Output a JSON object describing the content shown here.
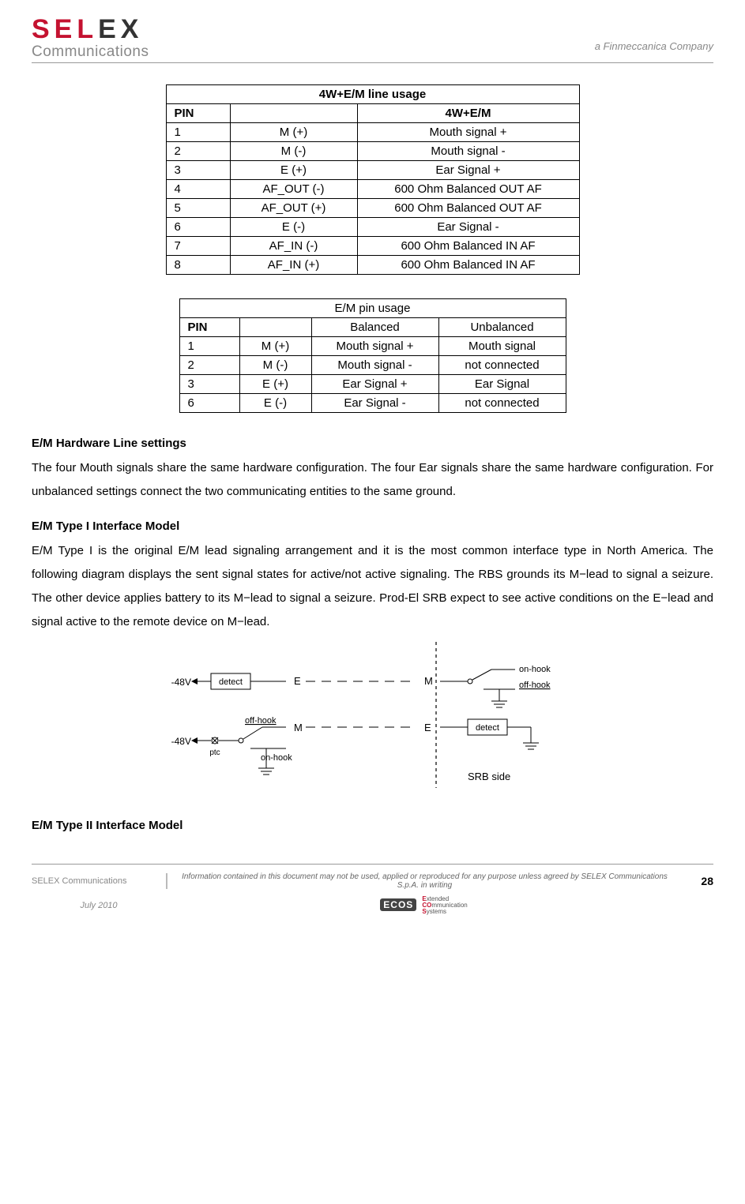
{
  "header": {
    "logo_main_prefix": "SEL",
    "logo_main_suffix": "EX",
    "logo_sub": "Communications",
    "tagline": "a Finmeccanica Company"
  },
  "table1": {
    "title": "4W+E/M line usage",
    "col_pin": "PIN",
    "col_desc": "4W+E/M",
    "rows": [
      {
        "pin": "1",
        "sig": "M (+)",
        "desc": "Mouth signal +"
      },
      {
        "pin": "2",
        "sig": "M (-)",
        "desc": "Mouth signal -"
      },
      {
        "pin": "3",
        "sig": "E (+)",
        "desc": "Ear Signal +"
      },
      {
        "pin": "4",
        "sig": "AF_OUT (-)",
        "desc": "600 Ohm Balanced OUT AF"
      },
      {
        "pin": "5",
        "sig": "AF_OUT (+)",
        "desc": "600 Ohm Balanced OUT AF"
      },
      {
        "pin": "6",
        "sig": "E (-)",
        "desc": "Ear Signal -"
      },
      {
        "pin": "7",
        "sig": "AF_IN (-)",
        "desc": "600 Ohm Balanced IN AF"
      },
      {
        "pin": "8",
        "sig": "AF_IN (+)",
        "desc": "600 Ohm Balanced IN AF"
      }
    ]
  },
  "table2": {
    "title": "E/M pin usage",
    "col_pin": "PIN",
    "col_bal": "Balanced",
    "col_unbal": "Unbalanced",
    "rows": [
      {
        "pin": "1",
        "sig": "M (+)",
        "bal": "Mouth signal +",
        "unbal": "Mouth signal"
      },
      {
        "pin": "2",
        "sig": "M (-)",
        "bal": "Mouth signal -",
        "unbal": "not connected"
      },
      {
        "pin": "3",
        "sig": "E (+)",
        "bal": "Ear Signal +",
        "unbal": "Ear Signal"
      },
      {
        "pin": "6",
        "sig": "E (-)",
        "bal": "Ear Signal -",
        "unbal": "not connected"
      }
    ]
  },
  "sect1_title": "E/M Hardware Line settings",
  "sect1_body": "The four Mouth signals share the same hardware configuration. The four Ear signals share the same hardware configuration. For unbalanced settings connect the two communicating entities to the same ground.",
  "sect2_title": "E/M Type I Interface Model",
  "sect2_body": "E/M Type I is the original E/M lead signaling arrangement and it is the most common interface type in North America. The following diagram displays the sent signal states for active/not active signaling. The RBS grounds its M−lead to signal a seizure. The other device applies battery to its M−lead to signal a seizure. Prod-El SRB expect to see active conditions on the E−lead and signal active to the remote device on M−lead.",
  "diagram": {
    "label_48v": "-48V",
    "label_detect": "detect",
    "label_offhook": "off-hook",
    "label_onhook": "on-hook",
    "label_ptc": "ptc",
    "label_E": "E",
    "label_M": "M",
    "label_srb": "SRB side"
  },
  "sect3_title": "E/M Type II Interface Model",
  "footer": {
    "company": "SELEX Communications",
    "disclaimer": "Information contained in this document may not be used, applied or reproduced for any purpose unless agreed by SELEX Communications S.p.A. in writing",
    "page": "28",
    "date": "July 2010",
    "ecos": "ECOS",
    "ecos_l1": "Extended",
    "ecos_l2": "COmmunication",
    "ecos_l3": "Systems"
  }
}
